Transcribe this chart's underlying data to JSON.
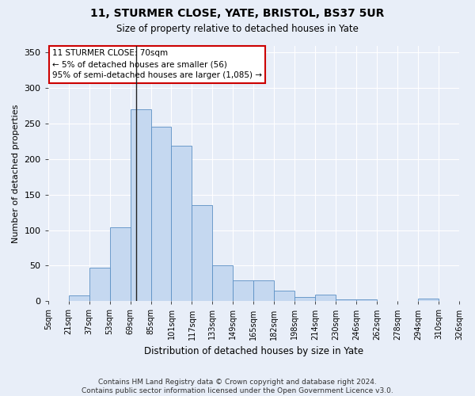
{
  "title": "11, STURMER CLOSE, YATE, BRISTOL, BS37 5UR",
  "subtitle": "Size of property relative to detached houses in Yate",
  "xlabel": "Distribution of detached houses by size in Yate",
  "ylabel": "Number of detached properties",
  "footer_line1": "Contains HM Land Registry data © Crown copyright and database right 2024.",
  "footer_line2": "Contains public sector information licensed under the Open Government Licence v3.0.",
  "annotation_title": "11 STURMER CLOSE: 70sqm",
  "annotation_line1": "← 5% of detached houses are smaller (56)",
  "annotation_line2": "95% of semi-detached houses are larger (1,085) →",
  "bar_color": "#c5d8f0",
  "bar_edge_color": "#5a8fc4",
  "annotation_box_color": "#ffffff",
  "annotation_box_edge": "#cc0000",
  "vline_color": "#222222",
  "tick_labels": [
    "5sqm",
    "21sqm",
    "37sqm",
    "53sqm",
    "69sqm",
    "85sqm",
    "101sqm",
    "117sqm",
    "133sqm",
    "149sqm",
    "165sqm",
    "182sqm",
    "198sqm",
    "214sqm",
    "230sqm",
    "246sqm",
    "262sqm",
    "278sqm",
    "294sqm",
    "310sqm",
    "326sqm"
  ],
  "values": [
    0,
    8,
    47,
    104,
    270,
    246,
    219,
    135,
    50,
    29,
    29,
    15,
    6,
    9,
    2,
    3,
    0,
    0,
    4,
    0
  ],
  "vline_bar_index": 3.5,
  "ylim": [
    0,
    360
  ],
  "yticks": [
    0,
    50,
    100,
    150,
    200,
    250,
    300,
    350
  ],
  "background_color": "#e8eef8",
  "plot_bg_color": "#e8eef8",
  "grid_color": "#ffffff",
  "title_fontsize": 10,
  "subtitle_fontsize": 8.5,
  "ylabel_fontsize": 8,
  "xlabel_fontsize": 8.5
}
